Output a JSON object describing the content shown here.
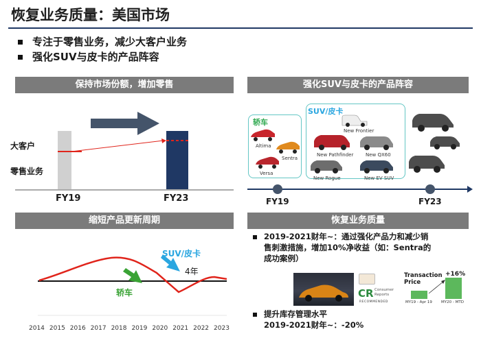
{
  "page": {
    "title": "恢复业务质量：美国市场",
    "bullets": [
      "专注于零售业务，减少大客户业务",
      "强化SUV与皮卡的产品阵容"
    ]
  },
  "panel_market_share": {
    "header": "保持市场份额，增加零售",
    "labels": {
      "fleet": "大客户",
      "retail": "零售业务"
    },
    "x_labels": [
      "FY19",
      "FY23"
    ]
  },
  "panel_lineup": {
    "header": "强化SUV与皮卡的产品阵容",
    "sedan_title": "轿车",
    "suv_title": "SUV/皮卡",
    "sedans": [
      "Altima",
      "Sentra",
      "Versa"
    ],
    "suvs": [
      "New Frontier",
      "New Pathfinder",
      "New QX60",
      "New Rogue",
      "New EV SUV"
    ],
    "timeline": [
      "FY19",
      "FY23"
    ]
  },
  "panel_cycle": {
    "header": "缩短产品更新周期",
    "suv_label": "SUV/皮卡",
    "sedan_label": "轿车",
    "four_years": "4年",
    "years": [
      "2014",
      "2015",
      "2016",
      "2017",
      "2018",
      "2019",
      "2020",
      "2021",
      "2022",
      "2023"
    ]
  },
  "panel_quality": {
    "header": "恢复业务质量",
    "bullet1": [
      "2019-2021财年~：通过强化产品力和减少销",
      "售刺激措施，增加10%净收益（如：Sentra的",
      "成功案例）"
    ],
    "cr_logo": [
      "CR",
      "Consumer",
      "Reports",
      "RECOMMENDED"
    ],
    "transaction": {
      "title": [
        "Transaction",
        "Price"
      ],
      "change": "+16%",
      "from": "MY19 - Apr 19",
      "to": "MY20 - MTD"
    },
    "bullet2": [
      "提升库存管理水平",
      "2019-2021财年~：-20%"
    ]
  },
  "colors": {
    "header_gray": "#7b7b7b",
    "navy": "#1f3864",
    "red": "#e0241b",
    "teal": "#63c6c4",
    "green": "#3aa335",
    "light_blue": "#2aa6e0",
    "green_bar": "#5cb85c"
  }
}
